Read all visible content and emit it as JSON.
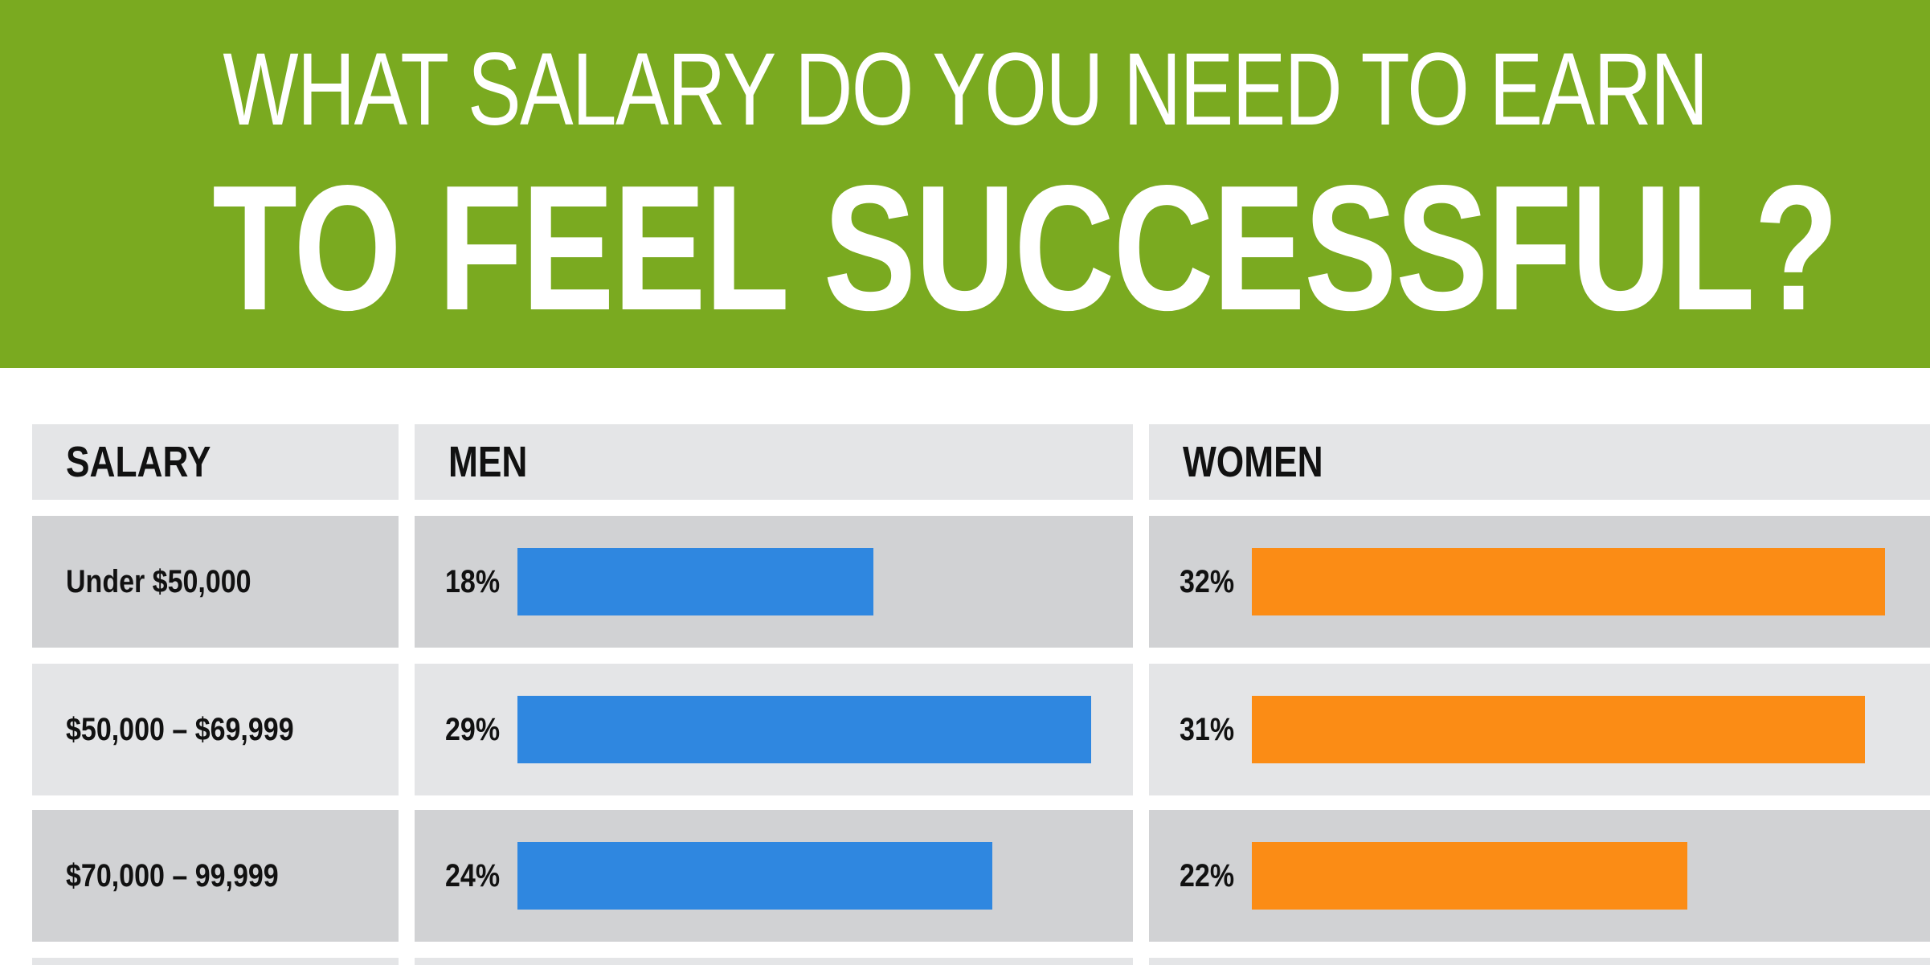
{
  "header": {
    "title_line1": "WHAT SALARY DO YOU NEED TO EARN",
    "title_line2": "TO FEEL SUCCESSFUL?"
  },
  "colors": {
    "banner": "#7aaa20",
    "men_bar": "#2f87e0",
    "women_bar": "#fb8c15"
  },
  "chart_data": {
    "type": "bar",
    "title": "WHAT SALARY DO YOU NEED TO EARN TO FEEL SUCCESSFUL?",
    "columns": [
      "SALARY",
      "MEN",
      "WOMEN"
    ],
    "categories": [
      "Under $50,000",
      "$50,000 – $69,999",
      "$70,000 – 99,999"
    ],
    "series": [
      {
        "name": "MEN",
        "values": [
          18,
          29,
          24
        ],
        "labels": [
          "18%",
          "29%",
          "24%"
        ]
      },
      {
        "name": "WOMEN",
        "values": [
          32,
          31,
          22
        ],
        "labels": [
          "32%",
          "31%",
          "22%"
        ]
      }
    ],
    "value_unit": "%",
    "xlim": [
      0,
      32
    ]
  }
}
